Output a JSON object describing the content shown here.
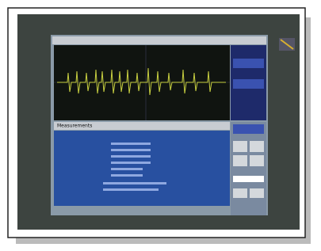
{
  "screen": {
    "tab": "Measurements"
  }
}
